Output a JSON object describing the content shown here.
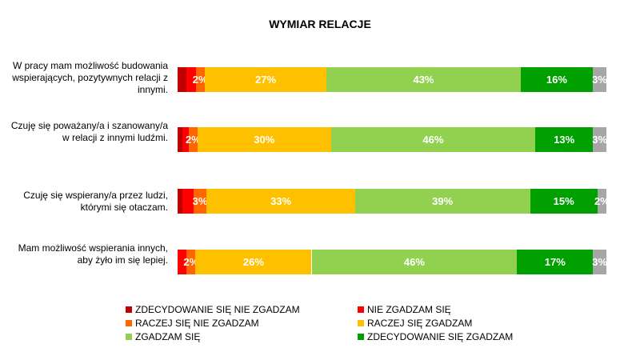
{
  "chart_data": {
    "type": "bar",
    "orientation": "horizontal",
    "stacked": true,
    "title": "WYMIAR RELACJE",
    "categories": [
      "W pracy mam możliwość budowania wspierających, pozytywnych relacji z innymi.",
      "Czuję się poważany/a i szanowany/a w relacji z innymi ludźmi.",
      "Czuję się wspierany/a przez ludzi, którymi się otaczam.",
      "Mam możliwość wspierania innych, aby żyło im się lepiej."
    ],
    "series": [
      {
        "name": "ZDECYDOWANIE SIĘ NIE ZGADZAM",
        "color": "#C00000",
        "values": [
          2,
          1,
          1,
          0
        ],
        "labels": [
          "",
          "",
          "",
          ""
        ]
      },
      {
        "name": "NIE ZGADZAM SIĘ",
        "color": "#FF0000",
        "values": [
          2,
          1.5,
          2.5,
          2
        ],
        "labels": [
          "",
          "",
          "",
          ""
        ]
      },
      {
        "name": "RACZEJ SIĘ NIE ZGADZAM",
        "color": "#FF6600",
        "values": [
          2,
          2,
          3,
          2
        ],
        "labels": [
          "2%",
          "2%",
          "3%",
          "2%"
        ]
      },
      {
        "name": "RACZEJ SIĘ ZGADZAM",
        "color": "#FFC000",
        "values": [
          27,
          30,
          33,
          26
        ],
        "labels": [
          "27%",
          "30%",
          "33%",
          "26%"
        ]
      },
      {
        "name": "ZGADZAM SIĘ",
        "color": "#92D050",
        "values": [
          43,
          46,
          39,
          46
        ],
        "labels": [
          "43%",
          "46%",
          "39%",
          "46%"
        ]
      },
      {
        "name": "ZDECYDOWANIE SIĘ ZGADZAM",
        "color": "#00A000",
        "values": [
          16,
          13,
          15,
          17
        ],
        "labels": [
          "16%",
          "13%",
          "15%",
          "17%"
        ]
      },
      {
        "color": "#A6A6A6",
        "values": [
          3,
          3,
          2,
          3
        ],
        "labels": [
          "3%",
          "3%",
          "2%",
          "3%"
        ]
      }
    ],
    "legend_position": "bottom",
    "grid": false
  }
}
